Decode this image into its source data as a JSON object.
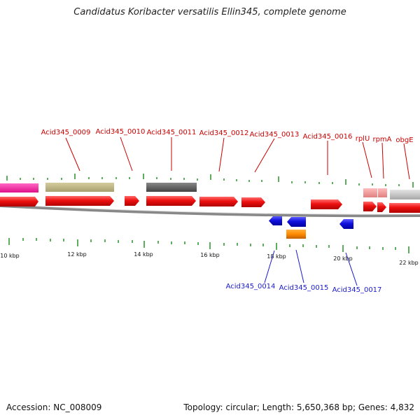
{
  "title": "Candidatus Koribacter versatilis Ellin345, complete genome",
  "footer": {
    "accession": "Accession: NC_008009",
    "summary": "Topology: circular; Length: 5,650,368 bp; Genes: 4,832"
  },
  "colors": {
    "cds": "#ee1111",
    "reverse_cds": "#1111dd",
    "forward_label": "#cc0000",
    "reverse_label": "#1a1acc",
    "tick": "#339933",
    "backbone": "#888888"
  },
  "scale_labels": [
    "10 kbp",
    "12 kbp",
    "14 kbp",
    "16 kbp",
    "18 kbp",
    "20 kbp",
    "22 kbp"
  ],
  "forward_gene_labels": [
    "Acid345_0009",
    "Acid345_0010",
    "Acid345_0011",
    "Acid345_0012",
    "Acid345_0013",
    "Acid345_0016",
    "rplU",
    "rpmA",
    "obgE"
  ],
  "reverse_gene_labels": [
    "Acid345_0014",
    "Acid345_0015",
    "Acid345_0017"
  ]
}
